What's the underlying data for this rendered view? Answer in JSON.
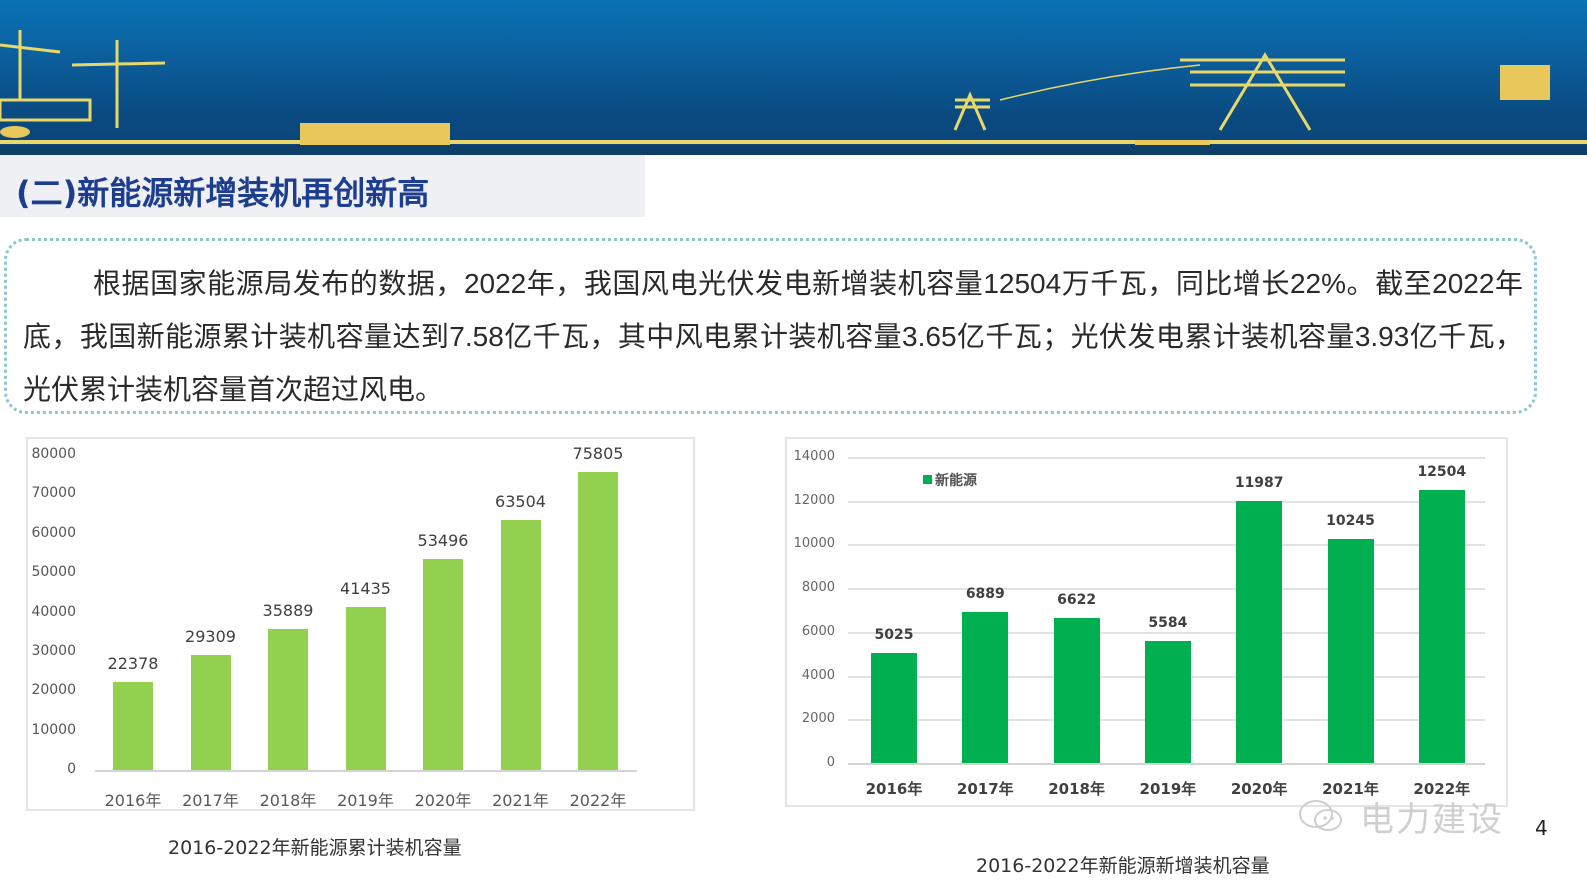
{
  "banner": {
    "description": "power infrastructure illustration banner",
    "colors": {
      "sky_top": "#0a73b5",
      "sky_bottom": "#0b4478",
      "line_art": "#e8d86a"
    }
  },
  "section": {
    "title": "(二)新能源新增装机再创新高"
  },
  "summary": {
    "text": "根据国家能源局发布的数据，2022年，我国风电光伏发电新增装机容量12504万千瓦，同比增长22%。截至2022年底，我国新能源累计装机容量达到7.58亿千瓦，其中风电累计装机容量3.65亿千瓦；光伏发电累计装机容量3.93亿千瓦，光伏累计装机容量首次超过风电。"
  },
  "chart_data": [
    {
      "type": "bar",
      "title": "2016-2022年新能源累计装机容量",
      "categories": [
        "2016年",
        "2017年",
        "2018年",
        "2019年",
        "2020年",
        "2021年",
        "2022年"
      ],
      "values": [
        22378,
        29309,
        35889,
        41435,
        53496,
        63504,
        75805
      ],
      "yticks": [
        "80000",
        "70000",
        "60000",
        "50000",
        "40000",
        "30000",
        "20000",
        "10000",
        "0"
      ],
      "ylim": [
        0,
        80000
      ],
      "xlabel": "",
      "ylabel": "",
      "grid": false,
      "legend": null,
      "color": "#92d050",
      "data_labels": true
    },
    {
      "type": "bar",
      "title": "2016-2022年新能源新增装机容量",
      "categories": [
        "2016年",
        "2017年",
        "2018年",
        "2019年",
        "2020年",
        "2021年",
        "2022年"
      ],
      "series": [
        {
          "name": "新能源",
          "values": [
            5025,
            6889,
            6622,
            5584,
            11987,
            10245,
            12504
          ]
        }
      ],
      "yticks": [
        "14000",
        "12000",
        "10000",
        "8000",
        "6000",
        "4000",
        "2000",
        "0"
      ],
      "ylim": [
        0,
        14000
      ],
      "xlabel": "",
      "ylabel": "",
      "grid": true,
      "legend": {
        "position": "top-left inside",
        "label": "新能源"
      },
      "color": "#00b050",
      "data_labels": true
    }
  ],
  "captions": {
    "left": "2016-2022年新能源累计装机容量",
    "right": "2016-2022年新能源新增装机容量"
  },
  "watermark": {
    "text": "电力建设",
    "icon": "wechat-icon"
  },
  "page_number": "4"
}
